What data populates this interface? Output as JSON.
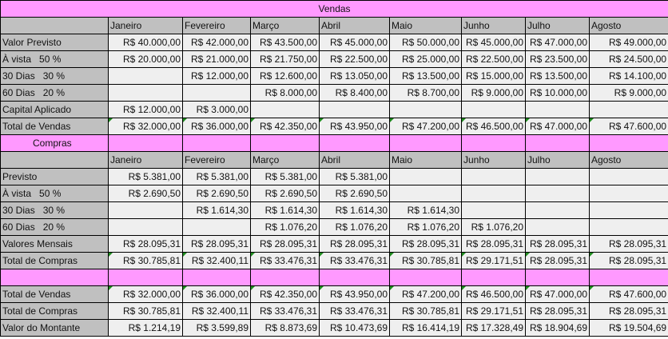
{
  "months": [
    "Janeiro",
    "Fevereiro",
    "Março",
    "Abril",
    "Maio",
    "Junho",
    "Julho",
    "Agosto"
  ],
  "vendas": {
    "title": "Vendas",
    "rows": [
      {
        "label": "Valor Previsto",
        "pct": "",
        "values": [
          "R$ 40.000,00",
          "R$ 42.000,00",
          "R$ 43.500,00",
          "R$ 45.000,00",
          "R$ 50.000,00",
          "R$ 45.000,00",
          "R$ 47.000,00",
          "R$ 49.000,00"
        ]
      },
      {
        "label": "À vista",
        "pct": "50 %",
        "values": [
          "R$ 20.000,00",
          "R$ 21.000,00",
          "R$ 21.750,00",
          "R$ 22.500,00",
          "R$ 25.000,00",
          "R$ 22.500,00",
          "R$ 23.500,00",
          "R$ 24.500,00"
        ]
      },
      {
        "label": "30 Dias",
        "pct": "30 %",
        "values": [
          "",
          "R$ 12.000,00",
          "R$ 12.600,00",
          "R$ 13.050,00",
          "R$ 13.500,00",
          "R$ 15.000,00",
          "R$ 13.500,00",
          "R$ 14.100,00"
        ]
      },
      {
        "label": "60 Dias",
        "pct": "20 %",
        "values": [
          "",
          "",
          "R$ 8.000,00",
          "R$ 8.400,00",
          "R$ 8.700,00",
          "R$ 9.000,00",
          "R$ 10.000,00",
          "R$ 9.000,00"
        ]
      },
      {
        "label": "Capital Aplicado",
        "pct": "",
        "values": [
          "R$ 12.000,00",
          "R$ 3.000,00",
          "",
          "",
          "",
          "",
          "",
          ""
        ]
      },
      {
        "label": "Total de Vendas",
        "pct": "",
        "values": [
          "R$ 32.000,00",
          "R$ 36.000,00",
          "R$ 42.350,00",
          "R$ 43.950,00",
          "R$ 47.200,00",
          "R$ 46.500,00",
          "R$ 47.000,00",
          "R$ 47.600,00"
        ]
      }
    ]
  },
  "compras": {
    "title": "Compras",
    "rows": [
      {
        "label": "Previsto",
        "pct": "",
        "values": [
          "R$ 5.381,00",
          "R$ 5.381,00",
          "R$ 5.381,00",
          "R$ 5.381,00",
          "",
          "",
          "",
          ""
        ]
      },
      {
        "label": "À vista",
        "pct": "50 %",
        "values": [
          "R$ 2.690,50",
          "R$ 2.690,50",
          "R$ 2.690,50",
          "R$ 2.690,50",
          "",
          "",
          "",
          ""
        ]
      },
      {
        "label": "30 Dias",
        "pct": "30 %",
        "values": [
          "",
          "R$ 1.614,30",
          "R$ 1.614,30",
          "R$ 1.614,30",
          "R$ 1.614,30",
          "",
          "",
          ""
        ]
      },
      {
        "label": "60 Dias",
        "pct": "20 %",
        "values": [
          "",
          "",
          "R$ 1.076,20",
          "R$ 1.076,20",
          "R$ 1.076,20",
          "R$ 1.076,20",
          "",
          ""
        ]
      },
      {
        "label": "Valores Mensais",
        "pct": "",
        "values": [
          "R$ 28.095,31",
          "R$ 28.095,31",
          "R$ 28.095,31",
          "R$ 28.095,31",
          "R$ 28.095,31",
          "R$ 28.095,31",
          "R$ 28.095,31",
          "R$ 28.095,31"
        ]
      },
      {
        "label": "Total de Compras",
        "pct": "",
        "values": [
          "R$ 30.785,81",
          "R$ 32.400,11",
          "R$ 33.476,31",
          "R$ 33.476,31",
          "R$ 30.785,81",
          "R$ 29.171,51",
          "R$ 28.095,31",
          "R$ 28.095,31"
        ]
      }
    ]
  },
  "resumo": {
    "rows": [
      {
        "label": "Total de Vendas",
        "pct": "",
        "values": [
          "R$ 32.000,00",
          "R$ 36.000,00",
          "R$ 42.350,00",
          "R$ 43.950,00",
          "R$ 47.200,00",
          "R$ 46.500,00",
          "R$ 47.000,00",
          "R$ 47.600,00"
        ]
      },
      {
        "label": "Total de Compras",
        "pct": "",
        "values": [
          "R$ 30.785,81",
          "R$ 32.400,11",
          "R$ 33.476,31",
          "R$ 33.476,31",
          "R$ 30.785,81",
          "R$ 29.171,51",
          "R$ 28.095,31",
          "R$ 28.095,31"
        ]
      },
      {
        "label": "Valor do Montante",
        "pct": "",
        "values": [
          "R$ 1.214,19",
          "R$ 3.599,89",
          "R$ 8.873,69",
          "R$ 10.473,69",
          "R$ 16.414,19",
          "R$ 17.328,49",
          "R$ 18.904,69",
          "R$ 19.504,69"
        ]
      }
    ]
  },
  "colors": {
    "section_band": "#ff99ff",
    "label_fill": "#c0c0c0",
    "cell_fill": "#efefef",
    "flag": "#1e8c1e"
  }
}
